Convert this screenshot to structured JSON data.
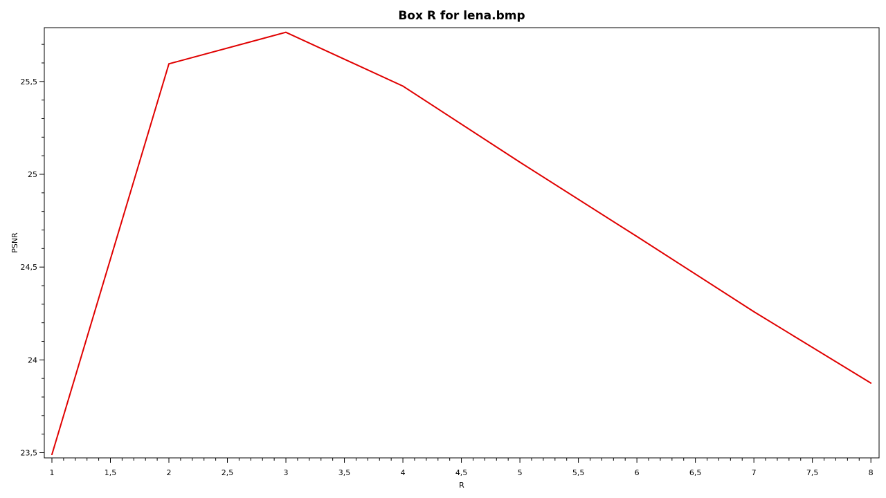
{
  "chart_data": {
    "type": "line",
    "title": "Box R for lena.bmp",
    "xlabel": "R",
    "ylabel": "PSNR",
    "xlim": [
      0.935,
      8.07
    ],
    "ylim": [
      23.472,
      25.79
    ],
    "grid": false,
    "legend": "none",
    "x_ticks": [
      "1",
      "1,5",
      "2",
      "2,5",
      "3",
      "3,5",
      "4",
      "4,5",
      "5",
      "5,5",
      "6",
      "6,5",
      "7",
      "7,5",
      "8"
    ],
    "y_ticks": [
      "23,5",
      "24",
      "24,5",
      "25",
      "25,5"
    ],
    "series": [
      {
        "color": "#e00000",
        "x": [
          1,
          2,
          3,
          4,
          5,
          6,
          7,
          8
        ],
        "y": [
          23.49,
          25.595,
          25.765,
          25.475,
          25.065,
          24.665,
          24.26,
          23.875
        ]
      }
    ]
  }
}
